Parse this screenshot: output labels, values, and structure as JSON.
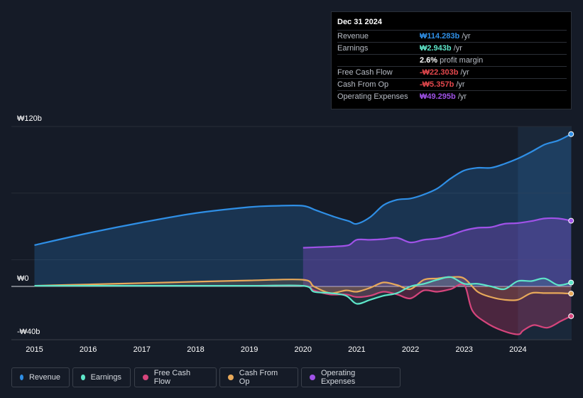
{
  "tooltip": {
    "date": "Dec 31 2024",
    "rows": [
      {
        "label": "Revenue",
        "value": "₩114.283b",
        "unit": "/yr",
        "color": "#2f8fe6"
      },
      {
        "label": "Earnings",
        "value": "₩2.943b",
        "unit": "/yr",
        "color": "#5ee6c9"
      },
      {
        "label": "",
        "value": "2.6%",
        "unit": "profit margin",
        "color": "#ffffff"
      },
      {
        "label": "Free Cash Flow",
        "value": "-₩22.303b",
        "unit": "/yr",
        "color": "#e5484d"
      },
      {
        "label": "Cash From Op",
        "value": "-₩5.357b",
        "unit": "/yr",
        "color": "#e5484d"
      },
      {
        "label": "Operating Expenses",
        "value": "₩49.295b",
        "unit": "/yr",
        "color": "#a052e8"
      }
    ]
  },
  "legend": [
    {
      "label": "Revenue",
      "color": "#2f8fe6"
    },
    {
      "label": "Earnings",
      "color": "#5ee6c9"
    },
    {
      "label": "Free Cash Flow",
      "color": "#d6457c"
    },
    {
      "label": "Cash From Op",
      "color": "#e8a95a"
    },
    {
      "label": "Operating Expenses",
      "color": "#a052e8"
    }
  ],
  "chart_data": {
    "type": "area",
    "y_unit": "₩ billions",
    "ylim": [
      -40,
      120
    ],
    "y_tick_labels": [
      {
        "value": 120,
        "label": "₩120b"
      },
      {
        "value": 0,
        "label": "₩0"
      },
      {
        "value": -40,
        "label": "-₩40b"
      }
    ],
    "x_tick_labels": [
      "2015",
      "2016",
      "2017",
      "2018",
      "2019",
      "2020",
      "2021",
      "2022",
      "2023",
      "2024"
    ],
    "x_tick_values": [
      2015,
      2016,
      2017,
      2018,
      2019,
      2020,
      2021,
      2022,
      2023,
      2024
    ],
    "xlim": [
      2014.57,
      2025.0
    ],
    "highlight_from": 2024.0,
    "series": [
      {
        "name": "Revenue",
        "color": "#2f8fe6",
        "x": [
          2015,
          2016,
          2017,
          2018,
          2019,
          2019.5,
          2020,
          2020.25,
          2020.6,
          2020.85,
          2021,
          2021.25,
          2021.5,
          2021.75,
          2022,
          2022.25,
          2022.5,
          2022.75,
          2023,
          2023.25,
          2023.5,
          2023.75,
          2024,
          2024.25,
          2024.5,
          2024.75,
          2024.99
        ],
        "y": [
          31,
          40,
          48,
          55,
          59.5,
          60.5,
          60.5,
          57,
          52,
          49,
          47,
          52,
          61,
          65,
          66,
          69,
          73.5,
          81,
          87,
          89,
          89,
          92,
          96,
          101,
          106.5,
          109.5,
          114.3
        ]
      },
      {
        "name": "Earnings",
        "color": "#5ee6c9",
        "x": [
          2015,
          2017,
          2019,
          2020,
          2020.2,
          2020.5,
          2020.8,
          2021,
          2021.25,
          2021.5,
          2021.75,
          2022,
          2022.25,
          2022.5,
          2022.75,
          2023,
          2023.25,
          2023.5,
          2023.75,
          2024,
          2024.25,
          2024.5,
          2024.75,
          2024.99
        ],
        "y": [
          0.5,
          0.5,
          0.5,
          0.5,
          -4,
          -5,
          -7,
          -13,
          -10,
          -7,
          -5,
          0,
          2,
          5,
          7,
          2,
          2,
          0,
          -2,
          4,
          4,
          6,
          1,
          2.9
        ]
      },
      {
        "name": "Free Cash Flow",
        "color": "#d6457c",
        "x": [
          2015,
          2017,
          2019,
          2020,
          2020.2,
          2020.5,
          2020.8,
          2021,
          2021.25,
          2021.5,
          2021.75,
          2022,
          2022.25,
          2022.5,
          2022.75,
          2023,
          2023.15,
          2023.4,
          2023.7,
          2024,
          2024.1,
          2024.3,
          2024.55,
          2024.8,
          2024.99
        ],
        "y": [
          0.5,
          0.5,
          0.5,
          0.5,
          -3,
          -6,
          -6,
          -8,
          -7,
          -4,
          -6,
          -9,
          -3,
          -4,
          -2,
          1,
          -18,
          -27,
          -33,
          -36,
          -33,
          -29,
          -31,
          -26,
          -22.3
        ]
      },
      {
        "name": "Cash From Op",
        "color": "#e8a95a",
        "x": [
          2015,
          2016,
          2017,
          2018,
          2019,
          2020,
          2020.2,
          2020.5,
          2020.8,
          2021,
          2021.25,
          2021.5,
          2021.75,
          2022,
          2022.25,
          2022.5,
          2022.75,
          2023,
          2023.25,
          2023.5,
          2023.75,
          2024,
          2024.25,
          2024.5,
          2024.75,
          2024.99
        ],
        "y": [
          0.5,
          1.5,
          2.5,
          3.5,
          4.5,
          5,
          0,
          -5,
          -3,
          -4,
          -1,
          3,
          1,
          -2,
          5,
          6,
          7,
          6,
          -4,
          -8,
          -10,
          -10,
          -5,
          -5,
          -5,
          -5.4
        ]
      },
      {
        "name": "Operating Expenses",
        "color": "#a052e8",
        "x": [
          2020,
          2020.3,
          2020.6,
          2020.85,
          2021,
          2021.25,
          2021.5,
          2021.75,
          2022,
          2022.25,
          2022.5,
          2022.75,
          2023,
          2023.25,
          2023.5,
          2023.75,
          2024,
          2024.25,
          2024.5,
          2024.75,
          2024.99
        ],
        "y": [
          29,
          29.5,
          30,
          31,
          35,
          35,
          35.5,
          36.5,
          33,
          35,
          36,
          38.5,
          42,
          44,
          44.5,
          47,
          47.5,
          49,
          51,
          51,
          49.3
        ]
      }
    ]
  }
}
